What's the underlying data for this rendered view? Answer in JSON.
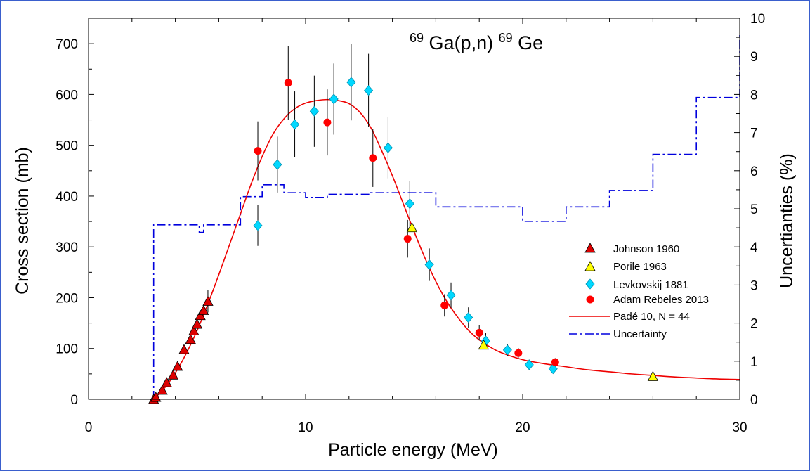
{
  "chart_data": {
    "type": "scatter",
    "title": {
      "parts": [
        {
          "text": "69",
          "sup": true
        },
        {
          "text": "Ga(p,n)",
          "sup": false
        },
        {
          "text": "69",
          "sup": true
        },
        {
          "text": "Ge",
          "sup": false
        }
      ]
    },
    "xlabel": "Particle energy (MeV)",
    "ylabel": "Cross section (mb)",
    "y2label": "Uncertianties (%)",
    "xlim": [
      0,
      30
    ],
    "ylim": [
      0,
      750
    ],
    "y2lim": [
      0,
      10
    ],
    "xticks": [
      0,
      10,
      20,
      30
    ],
    "yticks": [
      0,
      100,
      200,
      300,
      400,
      500,
      600,
      700
    ],
    "y2ticks": [
      0,
      1,
      2,
      3,
      4,
      5,
      6,
      7,
      8,
      9,
      10
    ],
    "legend_position": "right",
    "colors": {
      "johnson": "#dd0000",
      "porile": "#ffff00",
      "levkovskij": "#00d8ff",
      "adam": "#ff0000",
      "pade": "#ee0000",
      "uncertainty": "#0000dd",
      "frame": "#3a5fcd"
    },
    "series": [
      {
        "name": "Johnson 1960",
        "marker": "triangle",
        "color": "#dd0000",
        "x": [
          3.0,
          3.1,
          3.4,
          3.6,
          3.9,
          4.1,
          4.4,
          4.7,
          4.85,
          5.0,
          5.15,
          5.3,
          5.5
        ],
        "y": [
          0,
          4,
          18,
          33,
          48,
          65,
          98,
          118,
          135,
          148,
          165,
          175,
          193
        ],
        "err": [
          0,
          0,
          0,
          0,
          0,
          0,
          0,
          0,
          0,
          0,
          0,
          0,
          22
        ]
      },
      {
        "name": "Porile 1963",
        "marker": "triangle",
        "color": "#ffff00",
        "x": [
          14.9,
          18.2,
          26.0
        ],
        "y": [
          338,
          107,
          45
        ],
        "err": [
          0,
          0,
          0
        ]
      },
      {
        "name": "Levkovskij 1881",
        "marker": "diamond",
        "color": "#00d8ff",
        "x": [
          7.8,
          8.7,
          9.5,
          10.4,
          11.3,
          12.1,
          12.9,
          13.8,
          14.8,
          15.7,
          16.7,
          17.5,
          18.3,
          19.3,
          20.3,
          21.4
        ],
        "y": [
          342,
          462,
          541,
          567,
          591,
          624,
          608,
          495,
          385,
          265,
          205,
          161,
          115,
          97,
          68,
          60
        ],
        "err": [
          40,
          55,
          65,
          70,
          70,
          75,
          72,
          60,
          45,
          32,
          25,
          20,
          15,
          12,
          10,
          8
        ]
      },
      {
        "name": "Adam Rebeles 2013",
        "marker": "circle",
        "color": "#ff0000",
        "x": [
          7.8,
          9.2,
          11.0,
          13.1,
          14.7,
          16.4,
          18.0,
          19.8,
          21.5
        ],
        "y": [
          489,
          623,
          545,
          475,
          316,
          185,
          131,
          91,
          73
        ],
        "err": [
          58,
          73,
          65,
          57,
          37,
          22,
          15,
          10,
          8
        ]
      }
    ],
    "fit": {
      "name": "Padé 10, N = 44",
      "color": "#ee0000",
      "x": [
        3.0,
        3.5,
        4.0,
        4.5,
        5.0,
        5.5,
        6.0,
        6.5,
        7.0,
        7.5,
        8.0,
        8.5,
        9.0,
        9.5,
        10.0,
        10.5,
        11.0,
        11.5,
        12.0,
        12.5,
        13.0,
        13.5,
        14.0,
        14.5,
        15.0,
        15.5,
        16.0,
        16.5,
        17.0,
        17.5,
        18.0,
        18.5,
        19.0,
        20.0,
        21.0,
        22.0,
        23.0,
        24.0,
        25.0,
        26.0,
        27.0,
        28.0,
        29.0,
        30.0
      ],
      "y": [
        0,
        22,
        52,
        90,
        135,
        188,
        245,
        305,
        365,
        425,
        478,
        522,
        552,
        572,
        583,
        588,
        590,
        588,
        582,
        565,
        535,
        490,
        440,
        385,
        330,
        278,
        232,
        193,
        162,
        136,
        117,
        103,
        92,
        78,
        70,
        64,
        58,
        54,
        50,
        47,
        44,
        42,
        40,
        39
      ]
    },
    "uncertainty": {
      "name": "Uncertainty",
      "color": "#0000dd",
      "steps": [
        [
          3.0,
          3.0,
          0.0
        ],
        [
          3.0,
          5.1,
          4.58
        ],
        [
          5.1,
          5.3,
          4.38
        ],
        [
          5.3,
          7.0,
          4.58
        ],
        [
          7.0,
          8.0,
          5.32
        ],
        [
          8.0,
          9.0,
          5.63
        ],
        [
          9.0,
          10.0,
          5.42
        ],
        [
          10.0,
          11.0,
          5.3
        ],
        [
          11.0,
          13.0,
          5.38
        ],
        [
          13.0,
          16.0,
          5.42
        ],
        [
          16.0,
          20.0,
          5.05
        ],
        [
          20.0,
          22.0,
          4.67
        ],
        [
          22.0,
          24.0,
          5.05
        ],
        [
          24.0,
          26.0,
          5.48
        ],
        [
          26.0,
          28.0,
          6.43
        ],
        [
          28.0,
          30.0,
          7.92
        ],
        [
          30.0,
          30.0,
          9.6
        ]
      ]
    }
  }
}
